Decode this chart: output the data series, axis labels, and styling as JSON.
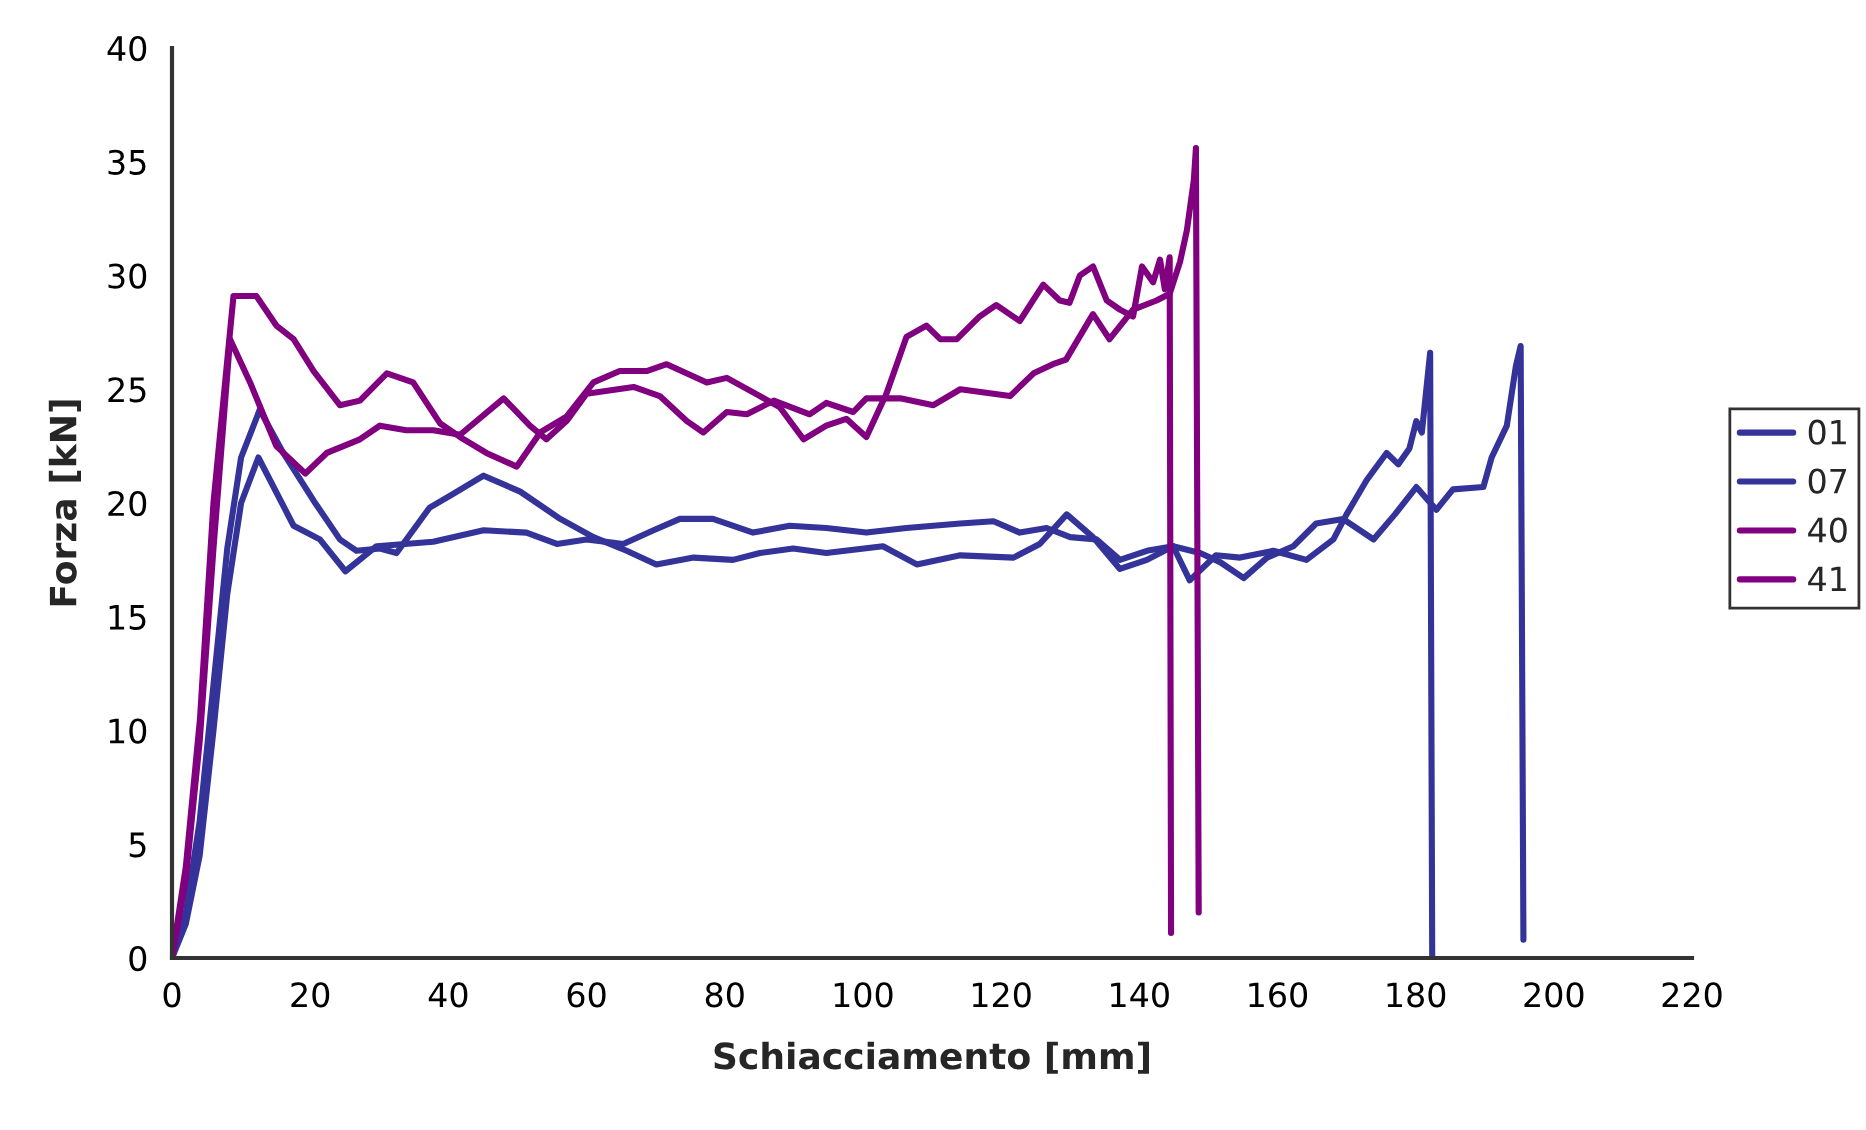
{
  "chart_data": {
    "type": "line",
    "xlabel": "Schiacciamento [mm]",
    "ylabel": "Forza [kN]",
    "xlim": [
      0,
      220
    ],
    "xticks": [
      0,
      20,
      40,
      60,
      80,
      100,
      120,
      140,
      160,
      180,
      200,
      220
    ],
    "ylim": [
      0,
      40
    ],
    "yticks": [
      0,
      5,
      10,
      15,
      20,
      25,
      30,
      35,
      40
    ],
    "grid": false,
    "legend": "right",
    "marker": "none",
    "line_style": "solid",
    "series": [
      {
        "name": "01",
        "color": "#333399",
        "x": [
          0,
          2,
          4,
          6,
          8,
          10,
          12.7,
          16.1,
          20.5,
          24.3,
          26.7,
          30.1,
          32.5,
          37.3,
          40.7,
          45.1,
          50.4,
          56.2,
          61.0,
          65.8,
          70.1,
          75.5,
          81.2,
          85.1,
          89.9,
          94.7,
          102.9,
          107.8,
          114.1,
          121.8,
          125.6,
          129.5,
          133.3,
          137.2,
          141.1,
          144.9,
          147.3,
          151.1,
          154.6,
          159.4,
          164.2,
          168.1,
          170.0,
          172.9,
          175.8,
          177.5,
          179.1,
          180.1,
          180.9,
          182.1,
          182.4
        ],
        "values": [
          0,
          2,
          6,
          12,
          18,
          22,
          24.1,
          22.2,
          20.1,
          18.4,
          17.9,
          18.0,
          17.8,
          19.8,
          20.4,
          21.2,
          20.5,
          19.3,
          18.5,
          17.9,
          17.3,
          17.6,
          17.5,
          17.8,
          18.0,
          17.8,
          18.1,
          17.3,
          17.7,
          17.6,
          18.2,
          19.5,
          18.5,
          17.1,
          17.5,
          18.1,
          16.6,
          17.7,
          17.6,
          17.9,
          17.5,
          18.4,
          19.5,
          21.0,
          22.2,
          21.7,
          22.4,
          23.6,
          23.1,
          26.6,
          0.1
        ]
      },
      {
        "name": "07",
        "color": "#333399",
        "x": [
          0,
          2,
          4,
          6,
          8,
          10,
          12.5,
          17.6,
          21.4,
          25.1,
          29.6,
          37.8,
          45.1,
          51.3,
          55.7,
          60.0,
          65.3,
          69.7,
          73.5,
          78.3,
          84.1,
          89.4,
          94.7,
          100.5,
          106.3,
          114.1,
          118.9,
          122.7,
          126.6,
          130.0,
          133.8,
          137.2,
          141.1,
          144.9,
          148.8,
          151.7,
          155.1,
          158.5,
          162.3,
          165.6,
          169.5,
          173.9,
          177.0,
          180.1,
          183.0,
          185.4,
          189.8,
          191.0,
          193.2,
          194.5,
          195.2,
          195.6
        ],
        "values": [
          0,
          1.5,
          4.5,
          10,
          16,
          20,
          22.0,
          19.0,
          18.4,
          17.0,
          18.1,
          18.3,
          18.8,
          18.7,
          18.2,
          18.4,
          18.2,
          18.8,
          19.3,
          19.3,
          18.7,
          19.0,
          18.9,
          18.7,
          18.9,
          19.1,
          19.2,
          18.7,
          18.9,
          18.5,
          18.4,
          17.5,
          17.9,
          18.1,
          17.8,
          17.4,
          16.7,
          17.6,
          18.1,
          19.1,
          19.3,
          18.4,
          19.5,
          20.7,
          19.7,
          20.6,
          20.7,
          22.0,
          23.4,
          26.0,
          26.9,
          0.8
        ]
      },
      {
        "name": "40",
        "color": "#800080",
        "x": [
          0,
          2,
          4.05,
          6,
          8.9,
          12.2,
          15.1,
          17.6,
          20.5,
          24.3,
          27.2,
          31.1,
          34.9,
          38.8,
          41.7,
          45.5,
          49.9,
          53.3,
          57.1,
          61.0,
          64.8,
          68.7,
          71.6,
          77.4,
          80.3,
          85.1,
          88.0,
          91.4,
          94.7,
          97.6,
          100.5,
          103.4,
          106.3,
          109.2,
          111.2,
          113.6,
          116.9,
          119.3,
          122.7,
          126.1,
          128.5,
          129.9,
          131.4,
          133.3,
          135.3,
          137.2,
          139.1,
          140.4,
          142.0,
          143.0,
          143.7,
          144.4,
          144.6
        ],
        "values": [
          0,
          4,
          10.5,
          20,
          29.1,
          29.1,
          27.8,
          27.2,
          25.8,
          24.3,
          24.5,
          25.7,
          25.3,
          23.5,
          22.9,
          22.2,
          21.6,
          23.1,
          23.8,
          25.3,
          25.8,
          25.8,
          26.1,
          25.3,
          25.5,
          24.7,
          24.2,
          22.8,
          23.4,
          23.7,
          22.9,
          24.8,
          27.3,
          27.8,
          27.2,
          27.2,
          28.2,
          28.7,
          28.0,
          29.6,
          28.9,
          28.8,
          30.0,
          30.4,
          28.9,
          28.5,
          28.2,
          30.4,
          29.7,
          30.7,
          29.4,
          30.8,
          1.1
        ]
      },
      {
        "name": "41",
        "color": "#800080",
        "x": [
          0,
          2,
          4,
          6,
          8.4,
          11.3,
          13.2,
          15.1,
          19.3,
          22.4,
          27.2,
          30.1,
          33.9,
          37.8,
          41.7,
          48.0,
          51.8,
          54.2,
          57.1,
          60.0,
          66.8,
          70.6,
          74.5,
          76.9,
          80.3,
          83.2,
          87.1,
          92.3,
          94.7,
          98.6,
          100.5,
          105.4,
          110.2,
          114.1,
          121.3,
          124.7,
          127.5,
          129.4,
          133.3,
          135.7,
          139.1,
          142.5,
          144.4,
          145.9,
          146.9,
          147.9,
          148.2,
          148.6
        ],
        "values": [
          0,
          3.5,
          9.5,
          18,
          27.2,
          25.3,
          23.9,
          22.5,
          21.3,
          22.2,
          22.8,
          23.4,
          23.2,
          23.2,
          23.0,
          24.6,
          23.4,
          22.8,
          23.6,
          24.8,
          25.1,
          24.7,
          23.6,
          23.1,
          24.0,
          23.9,
          24.5,
          23.9,
          24.4,
          24.0,
          24.6,
          24.6,
          24.3,
          25.0,
          24.7,
          25.7,
          26.1,
          26.3,
          28.3,
          27.2,
          28.5,
          28.9,
          29.2,
          30.6,
          32.0,
          34.2,
          35.6,
          2.0
        ]
      }
    ]
  }
}
